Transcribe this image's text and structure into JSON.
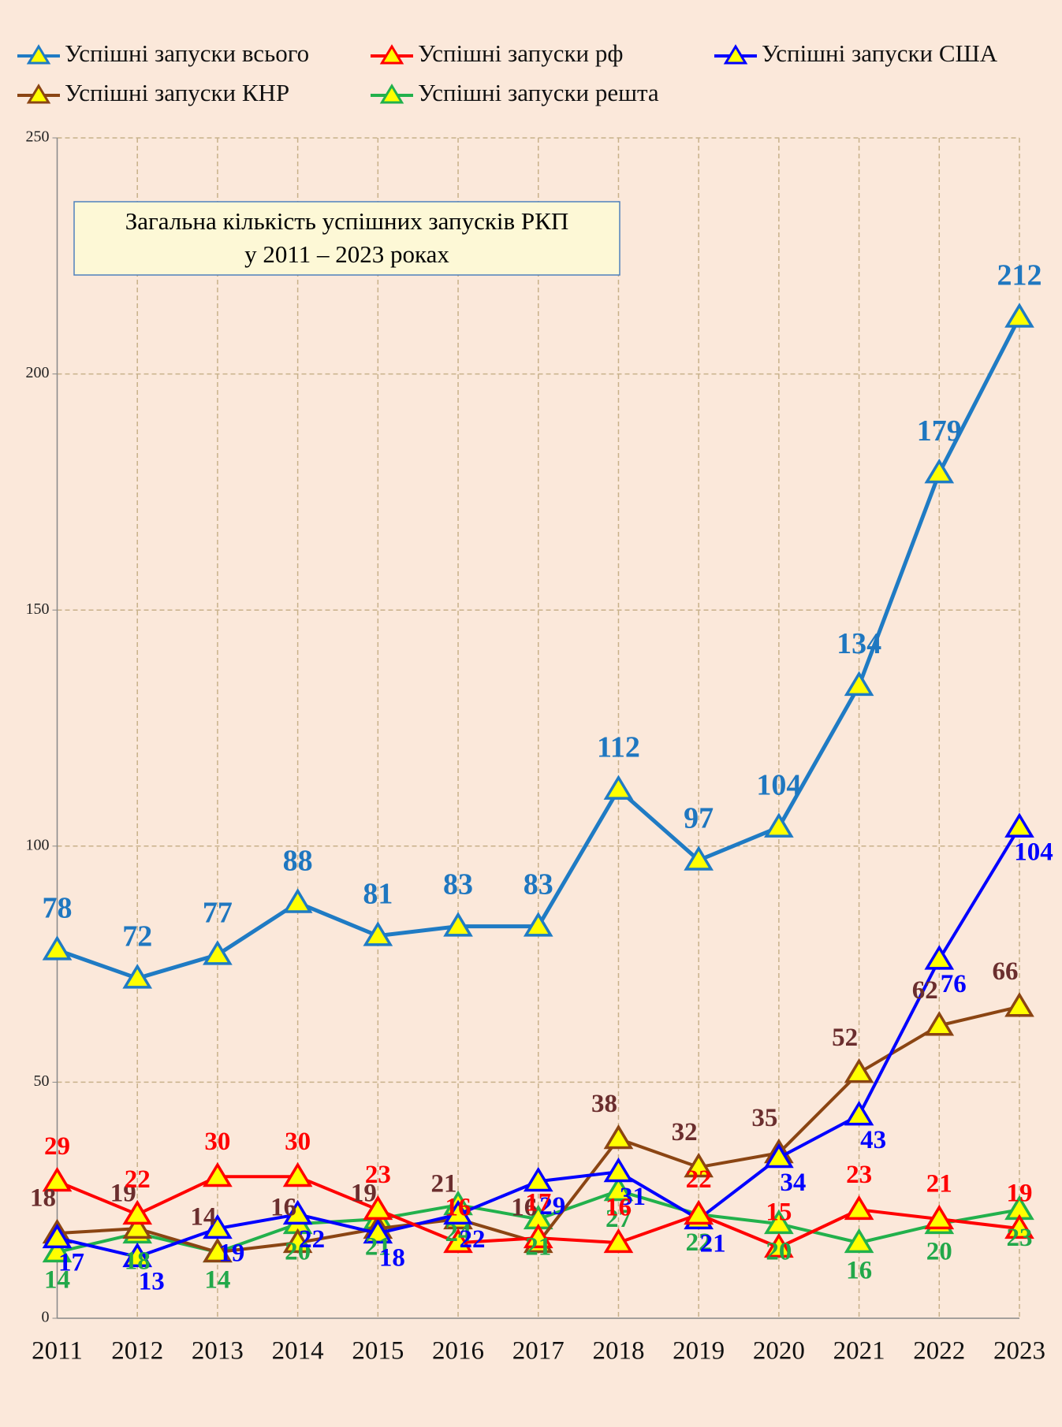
{
  "chart_data": {
    "type": "line",
    "title": [
      "Загальна кількість успішних запусків РКП",
      "у 2011 – 2023 роках"
    ],
    "categories": [
      "2011",
      "2012",
      "2013",
      "2014",
      "2015",
      "2016",
      "2017",
      "2018",
      "2019",
      "2020",
      "2021",
      "2022",
      "2023"
    ],
    "series": [
      {
        "name": "Успішні запуски всього",
        "color": "#1f7bc4",
        "values": [
          78,
          72,
          77,
          88,
          81,
          83,
          83,
          112,
          97,
          104,
          134,
          179,
          212
        ]
      },
      {
        "name": "Успішні запуски рф",
        "color": "#ff0000",
        "values": [
          29,
          22,
          30,
          30,
          23,
          16,
          17,
          16,
          22,
          15,
          23,
          21,
          19
        ]
      },
      {
        "name": "Успішні запуски США",
        "color": "#0000ff",
        "values": [
          17,
          13,
          19,
          22,
          18,
          22,
          29,
          31,
          21,
          34,
          43,
          76,
          104
        ]
      },
      {
        "name": "Успішні запуски КНР",
        "color": "#8b4513",
        "values": [
          18,
          19,
          14,
          16,
          19,
          21,
          16,
          38,
          32,
          35,
          52,
          62,
          66
        ]
      },
      {
        "name": "Успішні запуски решта",
        "color": "#22b14c",
        "values": [
          14,
          18,
          14,
          20,
          21,
          24,
          21,
          27,
          22,
          20,
          16,
          20,
          23
        ]
      }
    ],
    "ylim": [
      0,
      250
    ],
    "yticks": [
      0,
      50,
      100,
      150,
      200,
      250
    ],
    "grid": true,
    "legend": "top"
  }
}
